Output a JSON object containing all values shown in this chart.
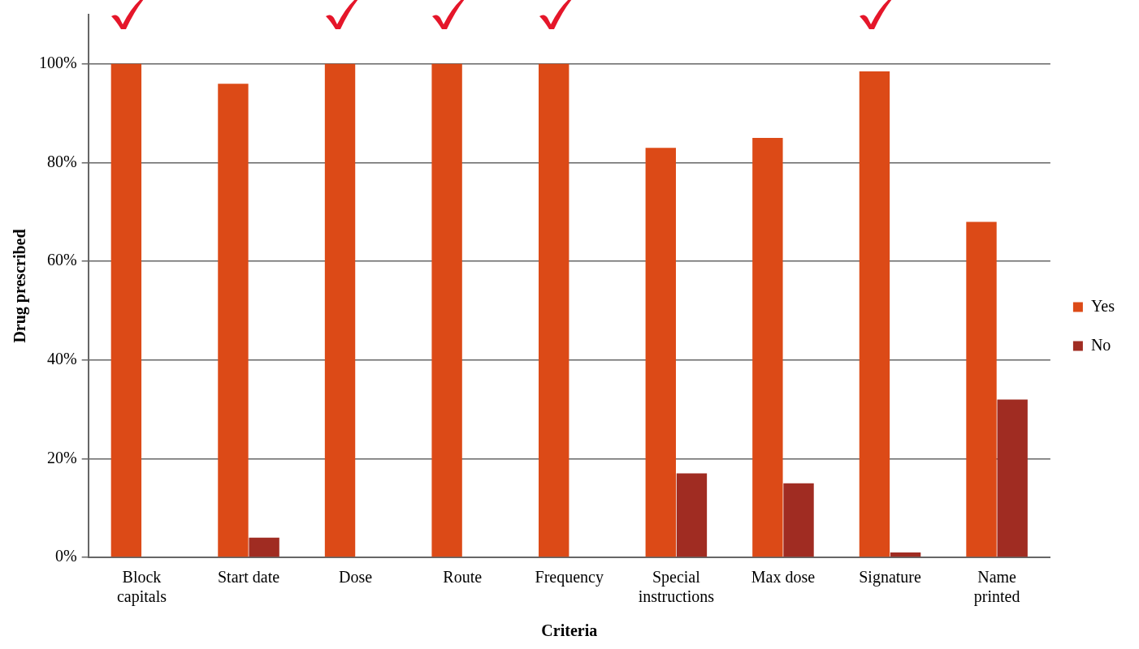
{
  "chart_data": {
    "type": "bar",
    "xlabel": "Criteria",
    "ylabel": "Drug prescribed",
    "categories": [
      "Block capitals",
      "Start date",
      "Dose",
      "Route",
      "Frequency",
      "Special instructions",
      "Max dose",
      "Signature",
      "Name printed"
    ],
    "series": [
      {
        "name": "Yes",
        "color": "#dc4a17",
        "values": [
          100,
          96,
          100,
          100,
          100,
          83,
          85,
          98.5,
          68
        ]
      },
      {
        "name": "No",
        "color": "#a02c22",
        "values": [
          0,
          4,
          0,
          0,
          0,
          17,
          15,
          1,
          32
        ]
      }
    ],
    "ylim": [
      0,
      110
    ],
    "yticks": [
      {
        "value": 0,
        "label": "0%"
      },
      {
        "value": 20,
        "label": "20%"
      },
      {
        "value": 40,
        "label": "40%"
      },
      {
        "value": 60,
        "label": "60%"
      },
      {
        "value": 80,
        "label": "80%"
      },
      {
        "value": 100,
        "label": "100%"
      }
    ],
    "grid": "y",
    "legend": "right"
  }
}
